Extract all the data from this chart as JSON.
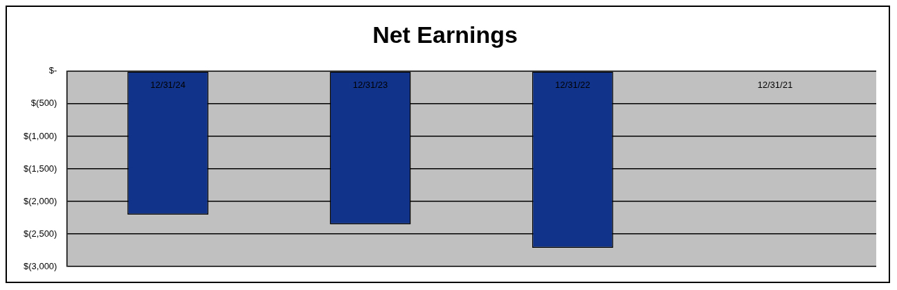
{
  "chart_data": {
    "type": "bar",
    "title": "Net Earnings",
    "categories": [
      "12/31/24",
      "12/31/23",
      "12/31/22",
      "12/31/21"
    ],
    "values": [
      -2200,
      -2350,
      -2710,
      null
    ],
    "color": "#12338a",
    "ylim": [
      -3000,
      0
    ],
    "yticks": [
      {
        "value": 0,
        "label": "$-"
      },
      {
        "value": -500,
        "label": "$(500)"
      },
      {
        "value": -1000,
        "label": "$(1,000)"
      },
      {
        "value": -1500,
        "label": "$(1,500)"
      },
      {
        "value": -2000,
        "label": "$(2,000)"
      },
      {
        "value": -2500,
        "label": "$(2,500)"
      },
      {
        "value": -3000,
        "label": "$(3,000)"
      }
    ],
    "grid": "y",
    "legend": false
  }
}
